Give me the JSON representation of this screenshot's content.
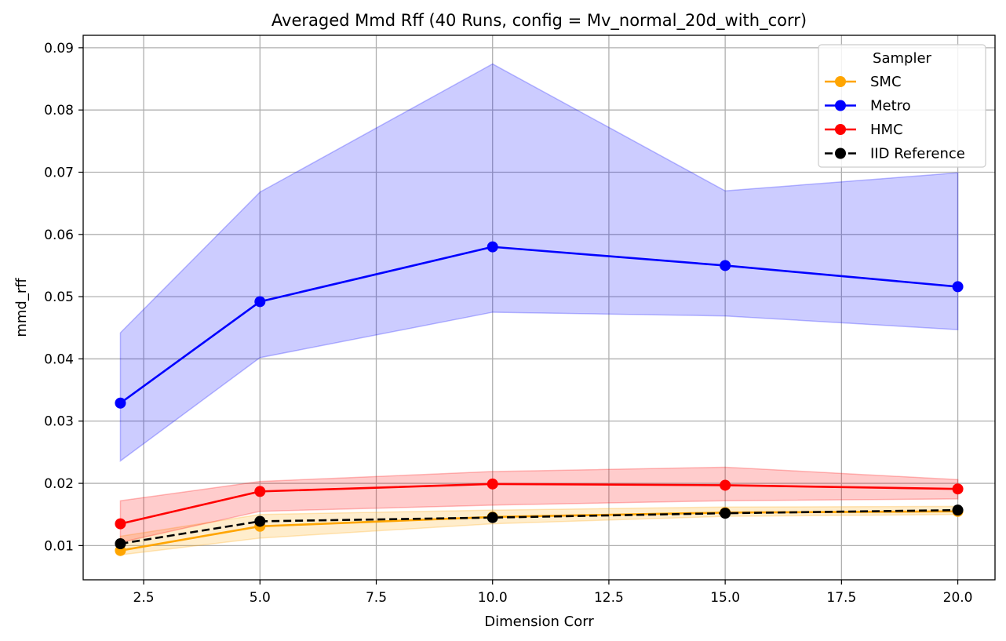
{
  "chart_data": {
    "type": "line",
    "title": "Averaged Mmd Rff (40 Runs, config = Mv_normal_20d_with_corr)",
    "xlabel": "Dimension Corr",
    "ylabel": "mmd_rff",
    "xlim": [
      1.2,
      20.8
    ],
    "ylim": [
      0.0045,
      0.092
    ],
    "xticks": [
      2.5,
      5.0,
      7.5,
      10.0,
      12.5,
      15.0,
      17.5,
      20.0
    ],
    "xtick_labels": [
      "2.5",
      "5.0",
      "7.5",
      "10.0",
      "12.5",
      "15.0",
      "17.5",
      "20.0"
    ],
    "yticks": [
      0.01,
      0.02,
      0.03,
      0.04,
      0.05,
      0.06,
      0.07,
      0.08,
      0.09
    ],
    "ytick_labels": [
      "0.01",
      "0.02",
      "0.03",
      "0.04",
      "0.05",
      "0.06",
      "0.07",
      "0.08",
      "0.09"
    ],
    "grid": true,
    "legend_title": "Sampler",
    "legend_position": "top-right",
    "x": [
      2,
      5,
      10,
      15,
      20
    ],
    "series": [
      {
        "name": "SMC",
        "color": "#ffa500",
        "band_color": "#ffa500",
        "dashed": false,
        "values": [
          0.0092,
          0.0131,
          0.0146,
          0.0153,
          0.0155
        ],
        "lower": [
          0.0085,
          0.0112,
          0.0135,
          0.0147,
          0.015
        ],
        "upper": [
          0.0115,
          0.015,
          0.0157,
          0.0162,
          0.0163
        ]
      },
      {
        "name": "Metro",
        "color": "#0000ff",
        "band_color": "#0000ff",
        "dashed": false,
        "values": [
          0.0329,
          0.0492,
          0.058,
          0.055,
          0.0516
        ],
        "lower": [
          0.0236,
          0.0402,
          0.0475,
          0.0469,
          0.0447
        ],
        "upper": [
          0.0442,
          0.0668,
          0.0874,
          0.067,
          0.0699
        ]
      },
      {
        "name": "HMC",
        "color": "#ff0000",
        "band_color": "#ff0000",
        "dashed": false,
        "values": [
          0.0135,
          0.0187,
          0.0199,
          0.0197,
          0.0191
        ],
        "lower": [
          0.0105,
          0.0155,
          0.0165,
          0.0172,
          0.0175
        ],
        "upper": [
          0.0172,
          0.0203,
          0.0219,
          0.0226,
          0.0206
        ]
      },
      {
        "name": "IID Reference",
        "color": "#000000",
        "dashed": true,
        "values": [
          0.0103,
          0.0139,
          0.0145,
          0.0152,
          0.0157
        ]
      }
    ]
  }
}
